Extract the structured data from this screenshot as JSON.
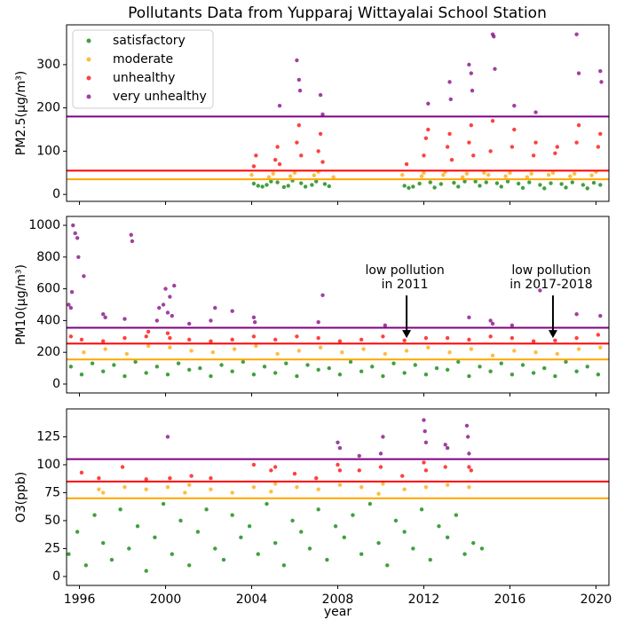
{
  "chart_data": [
    {
      "type": "scatter",
      "title": "Pollutants Data from Yupparaj Wittayalai School Station",
      "ylabel": "PM2.5(μg/m³)",
      "xlim": [
        1995.4,
        2020.6
      ],
      "ylim": [
        -16,
        392
      ],
      "yticks": [
        0,
        100,
        200,
        300
      ],
      "legend": "upper left",
      "hlines": [
        {
          "value": 180,
          "color": "purple"
        },
        {
          "value": 55,
          "color": "red"
        },
        {
          "value": 35,
          "color": "orange"
        }
      ],
      "series": [
        {
          "name": "satisfactory",
          "color": "green",
          "x": [
            2004.1,
            2004.3,
            2004.5,
            2004.7,
            2004.9,
            2005.2,
            2005.5,
            2005.7,
            2005.9,
            2006.3,
            2006.5,
            2006.8,
            2007.0,
            2007.4,
            2007.6,
            2011.1,
            2011.3,
            2011.5,
            2011.8,
            2012.3,
            2012.5,
            2012.8,
            2013.4,
            2013.6,
            2013.9,
            2014.4,
            2014.6,
            2014.9,
            2015.4,
            2015.6,
            2015.9,
            2016.4,
            2016.6,
            2016.9,
            2017.4,
            2017.6,
            2017.9,
            2018.4,
            2018.6,
            2018.9,
            2019.4,
            2019.6,
            2019.9,
            2020.2
          ],
          "values": [
            25,
            20,
            18,
            22,
            30,
            28,
            17,
            20,
            32,
            26,
            18,
            22,
            30,
            24,
            19,
            20,
            15,
            18,
            25,
            28,
            16,
            24,
            27,
            18,
            30,
            30,
            20,
            28,
            26,
            18,
            30,
            25,
            15,
            28,
            22,
            14,
            26,
            24,
            16,
            28,
            22,
            14,
            27,
            22
          ]
        },
        {
          "name": "moderate",
          "color": "orange",
          "x": [
            2004.0,
            2004.8,
            2005.0,
            2005.8,
            2006.0,
            2006.9,
            2007.1,
            2007.8,
            2011.0,
            2011.9,
            2012.0,
            2012.9,
            2013.0,
            2013.8,
            2014.0,
            2014.8,
            2015.0,
            2015.8,
            2016.0,
            2016.8,
            2017.0,
            2017.8,
            2018.0,
            2018.8,
            2019.0,
            2019.8,
            2020.0
          ],
          "values": [
            45,
            40,
            48,
            42,
            50,
            44,
            52,
            40,
            45,
            42,
            50,
            45,
            52,
            40,
            48,
            50,
            45,
            42,
            50,
            40,
            48,
            45,
            50,
            42,
            48,
            44,
            52
          ]
        },
        {
          "name": "unhealthy",
          "color": "red",
          "x": [
            2004.1,
            2004.2,
            2005.1,
            2005.2,
            2005.3,
            2006.1,
            2006.2,
            2006.3,
            2007.1,
            2007.2,
            2007.3,
            2012.0,
            2012.1,
            2012.2,
            2013.1,
            2013.2,
            2013.3,
            2014.1,
            2014.2,
            2014.3,
            2015.1,
            2015.2,
            2016.1,
            2016.2,
            2017.1,
            2017.2,
            2018.1,
            2018.2,
            2019.1,
            2019.2,
            2020.1,
            2020.2,
            2011.2
          ],
          "values": [
            65,
            90,
            80,
            110,
            70,
            120,
            160,
            90,
            100,
            140,
            75,
            90,
            130,
            150,
            110,
            140,
            80,
            120,
            160,
            90,
            100,
            170,
            110,
            150,
            90,
            120,
            95,
            110,
            120,
            160,
            110,
            140,
            70
          ]
        },
        {
          "name": "very unhealthy",
          "color": "purple",
          "x": [
            2005.3,
            2006.1,
            2006.2,
            2006.25,
            2007.2,
            2007.3,
            2012.2,
            2013.2,
            2013.25,
            2014.1,
            2014.2,
            2014.25,
            2015.2,
            2015.25,
            2015.3,
            2016.2,
            2017.2,
            2019.1,
            2019.2,
            2020.2,
            2020.25
          ],
          "values": [
            205,
            310,
            265,
            240,
            230,
            185,
            210,
            260,
            220,
            300,
            280,
            240,
            370,
            365,
            290,
            205,
            190,
            370,
            280,
            285,
            260
          ]
        }
      ]
    },
    {
      "type": "scatter",
      "ylabel": "PM10(μg/m³)",
      "xlim": [
        1995.4,
        2020.6
      ],
      "ylim": [
        -56,
        1056
      ],
      "yticks": [
        0,
        200,
        400,
        600,
        800,
        1000
      ],
      "hlines": [
        {
          "value": 355,
          "color": "purple"
        },
        {
          "value": 255,
          "color": "red"
        },
        {
          "value": 155,
          "color": "orange"
        }
      ],
      "annotations": [
        {
          "text": [
            "low pollution",
            "in 2011"
          ],
          "x": 2011.2,
          "y": 290
        },
        {
          "text": [
            "low pollution",
            "in 2017-2018"
          ],
          "x": 2018.0,
          "y": 290
        }
      ],
      "series": [
        {
          "color": "green",
          "x": [
            1995.6,
            1996.1,
            1996.6,
            1997.1,
            1997.6,
            1998.1,
            1998.6,
            1999.1,
            1999.6,
            2000.1,
            2000.6,
            2001.1,
            2001.6,
            2002.1,
            2002.6,
            2003.1,
            2003.6,
            2004.1,
            2004.6,
            2005.1,
            2005.6,
            2006.1,
            2006.6,
            2007.1,
            2007.6,
            2008.1,
            2008.6,
            2009.1,
            2009.6,
            2010.1,
            2010.6,
            2011.1,
            2011.6,
            2012.1,
            2012.6,
            2013.1,
            2013.6,
            2014.1,
            2014.6,
            2015.1,
            2015.6,
            2016.1,
            2016.6,
            2017.1,
            2017.6,
            2018.1,
            2018.6,
            2019.1,
            2019.6,
            2020.1
          ],
          "values": [
            110,
            60,
            130,
            80,
            120,
            50,
            140,
            70,
            110,
            60,
            130,
            90,
            100,
            50,
            120,
            80,
            140,
            60,
            110,
            70,
            130,
            50,
            120,
            90,
            100,
            60,
            140,
            80,
            110,
            50,
            130,
            70,
            120,
            60,
            100,
            90,
            140,
            50,
            110,
            80,
            130,
            60,
            120,
            70,
            100,
            50,
            140,
            80,
            110,
            60
          ]
        },
        {
          "color": "orange",
          "x": [
            1996.2,
            1997.2,
            1998.2,
            1999.2,
            2000.2,
            2001.2,
            2002.2,
            2003.2,
            2004.2,
            2005.2,
            2006.2,
            2007.2,
            2008.2,
            2009.2,
            2010.2,
            2011.2,
            2012.2,
            2013.2,
            2014.2,
            2015.2,
            2016.2,
            2017.2,
            2018.2,
            2019.2,
            2020.2
          ],
          "values": [
            200,
            220,
            190,
            240,
            230,
            210,
            200,
            220,
            240,
            190,
            210,
            230,
            200,
            220,
            190,
            210,
            230,
            200,
            220,
            180,
            210,
            200,
            190,
            220,
            230
          ]
        },
        {
          "color": "red",
          "x": [
            1995.6,
            1996.1,
            1997.1,
            1998.1,
            1999.1,
            1999.2,
            2000.1,
            2000.2,
            2001.1,
            2002.1,
            2003.1,
            2004.1,
            2005.1,
            2006.1,
            2007.1,
            2008.1,
            2009.1,
            2010.1,
            2011.1,
            2012.1,
            2013.1,
            2014.1,
            2015.1,
            2016.1,
            2017.1,
            2018.1,
            2019.1,
            2020.1
          ],
          "values": [
            300,
            280,
            270,
            290,
            300,
            330,
            320,
            290,
            280,
            270,
            280,
            300,
            280,
            300,
            290,
            270,
            280,
            300,
            275,
            290,
            290,
            280,
            300,
            290,
            270,
            275,
            290,
            310
          ]
        },
        {
          "color": "purple",
          "x": [
            1995.5,
            1995.6,
            1995.7,
            1995.8,
            1995.9,
            1995.65,
            1995.95,
            1996.2,
            1997.1,
            1997.2,
            1998.1,
            1998.4,
            1998.45,
            1999.6,
            1999.7,
            1999.9,
            2000.0,
            2000.2,
            2000.3,
            2000.4,
            2000.1,
            2001.1,
            2002.1,
            2002.3,
            2003.1,
            2004.1,
            2004.15,
            2007.1,
            2007.3,
            2010.2,
            2014.1,
            2015.1,
            2015.2,
            2016.1,
            2017.4,
            2019.1,
            2020.2
          ],
          "values": [
            500,
            480,
            1000,
            950,
            920,
            580,
            800,
            680,
            440,
            420,
            410,
            940,
            900,
            400,
            480,
            500,
            600,
            550,
            430,
            620,
            450,
            380,
            400,
            480,
            460,
            420,
            390,
            390,
            560,
            370,
            420,
            400,
            380,
            370,
            590,
            440,
            430
          ]
        }
      ]
    },
    {
      "type": "scatter",
      "ylabel": "O3(ppb)",
      "xlabel": "year",
      "xlim": [
        1995.4,
        2020.6
      ],
      "ylim": [
        -8,
        150
      ],
      "yticks": [
        0,
        25,
        50,
        75,
        100,
        125
      ],
      "xticks": [
        1996,
        2000,
        2004,
        2008,
        2012,
        2016,
        2020
      ],
      "hlines": [
        {
          "value": 105,
          "color": "purple"
        },
        {
          "value": 85,
          "color": "red"
        },
        {
          "value": 70,
          "color": "orange"
        }
      ],
      "series": [
        {
          "color": "green",
          "x": [
            1995.5,
            1995.9,
            1996.3,
            1996.7,
            1997.1,
            1997.5,
            1997.9,
            1998.3,
            1998.7,
            1999.1,
            1999.5,
            1999.9,
            2000.3,
            2000.7,
            2001.1,
            2001.5,
            2001.9,
            2002.3,
            2002.7,
            2003.1,
            2003.5,
            2003.9,
            2004.3,
            2004.7,
            2005.1,
            2005.5,
            2005.9,
            2006.3,
            2006.7,
            2007.1,
            2007.5,
            2007.9,
            2008.3,
            2008.7,
            2009.1,
            2009.5,
            2009.9,
            2010.3,
            2010.7,
            2011.1,
            2011.5,
            2011.9,
            2012.3,
            2012.7,
            2013.1,
            2013.5,
            2013.9,
            2014.3,
            2014.7
          ],
          "values": [
            20,
            40,
            10,
            55,
            30,
            15,
            60,
            25,
            45,
            5,
            35,
            65,
            20,
            50,
            10,
            40,
            60,
            25,
            15,
            55,
            35,
            45,
            20,
            65,
            30,
            10,
            50,
            40,
            25,
            60,
            15,
            45,
            35,
            55,
            20,
            65,
            30,
            10,
            50,
            40,
            25,
            60,
            15,
            45,
            35,
            55,
            20,
            30,
            25
          ]
        },
        {
          "color": "orange",
          "x": [
            1996.9,
            1997.1,
            1998.1,
            1999.1,
            2000.1,
            2001.1,
            2002.1,
            2003.1,
            2004.1,
            2005.1,
            2006.1,
            2007.1,
            2008.1,
            2009.1,
            2010.1,
            2011.1,
            2012.1,
            2013.1,
            2014.1,
            2000.9,
            2004.9,
            2009.9
          ],
          "values": [
            78,
            75,
            80,
            78,
            80,
            82,
            78,
            75,
            80,
            83,
            80,
            78,
            82,
            80,
            83,
            78,
            80,
            82,
            80,
            75,
            76,
            74
          ]
        },
        {
          "color": "red",
          "x": [
            1996.1,
            1996.9,
            1998.0,
            1999.1,
            2000.2,
            2001.2,
            2002.1,
            2004.1,
            2004.9,
            2005.1,
            2006.0,
            2007.0,
            2008.0,
            2008.1,
            2009.0,
            2010.0,
            2011.0,
            2012.0,
            2012.1,
            2013.0,
            2014.1,
            2014.2
          ],
          "values": [
            93,
            88,
            98,
            87,
            88,
            90,
            88,
            100,
            95,
            98,
            92,
            88,
            100,
            95,
            95,
            98,
            90,
            102,
            95,
            98,
            98,
            95
          ]
        },
        {
          "color": "purple",
          "x": [
            2000.1,
            2008.0,
            2008.1,
            2009.0,
            2010.1,
            2010.0,
            2012.0,
            2012.05,
            2012.1,
            2013.0,
            2013.1,
            2014.0,
            2014.05,
            2014.1
          ],
          "values": [
            125,
            120,
            115,
            108,
            125,
            110,
            140,
            130,
            120,
            118,
            115,
            135,
            125,
            110
          ]
        }
      ]
    }
  ]
}
